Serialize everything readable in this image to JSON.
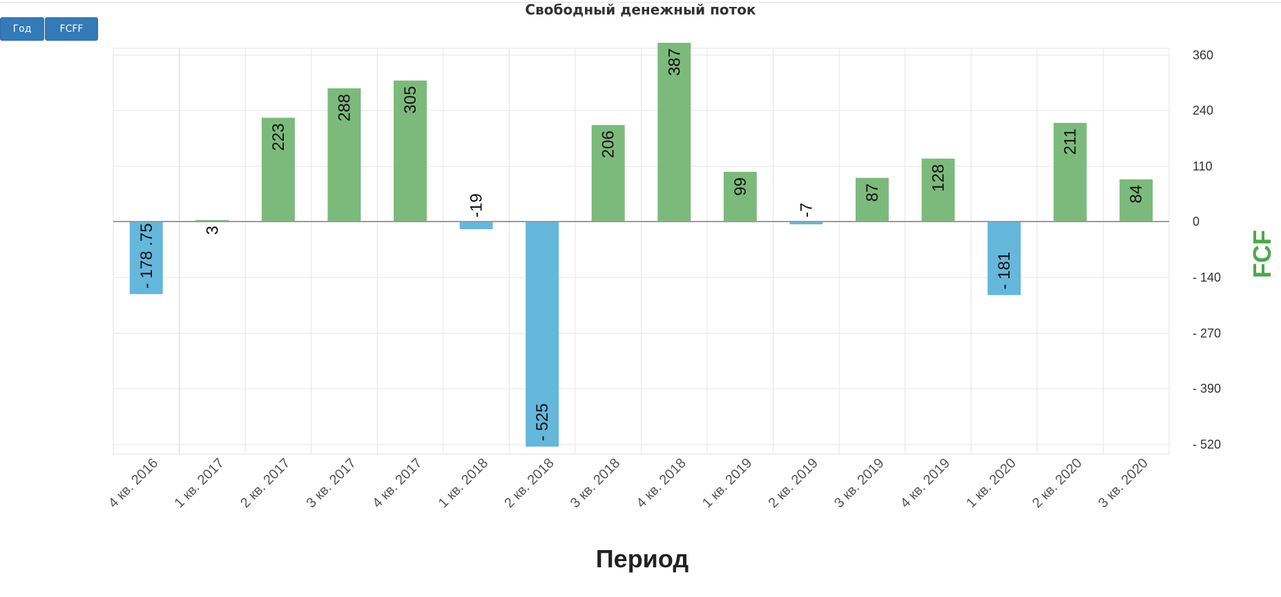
{
  "header": {
    "title": "Свободный денежный поток"
  },
  "buttons": {
    "year_label": "Год",
    "fcff_label": "FCFF"
  },
  "colors": {
    "positive": "#7cba7c",
    "negative": "#65b7db",
    "axis_title": "#4aa84a",
    "grid": "#e6e6e6",
    "zero_line": "#9a9a9a"
  },
  "chart_data": {
    "type": "bar",
    "title": "Свободный денежный поток",
    "xlabel": "Период",
    "ylabel": "FCF",
    "categories": [
      "4 кв. 2016",
      "1 кв. 2017",
      "2 кв. 2017",
      "3 кв. 2017",
      "4 кв. 2017",
      "1 кв. 2018",
      "2 кв. 2018",
      "3 кв. 2018",
      "4 кв. 2018",
      "1 кв. 2019",
      "2 кв. 2019",
      "3 кв. 2019",
      "4 кв. 2019",
      "1 кв. 2020",
      "2 кв. 2020",
      "3 кв. 2020"
    ],
    "values": [
      -178.75,
      3,
      223,
      288,
      305,
      -19,
      -525,
      206,
      387,
      99,
      -7,
      87,
      128,
      -181,
      211,
      84
    ],
    "data_labels": [
      "- 178 .75",
      "3",
      "223",
      "288",
      "305",
      "-19",
      "- 525",
      "206",
      "387",
      "99",
      "-7",
      "87",
      "128",
      "- 181",
      "211",
      "84"
    ],
    "y_ticks": [
      360,
      240,
      110,
      0,
      -140,
      -270,
      -390,
      -520
    ],
    "y_tick_labels": [
      "360",
      "240",
      "110",
      "0",
      "- 140",
      "- 270",
      "- 390",
      "- 520"
    ],
    "ylim": [
      -525,
      387
    ],
    "y_axis_position": "right",
    "grid": true,
    "legend": "none"
  }
}
